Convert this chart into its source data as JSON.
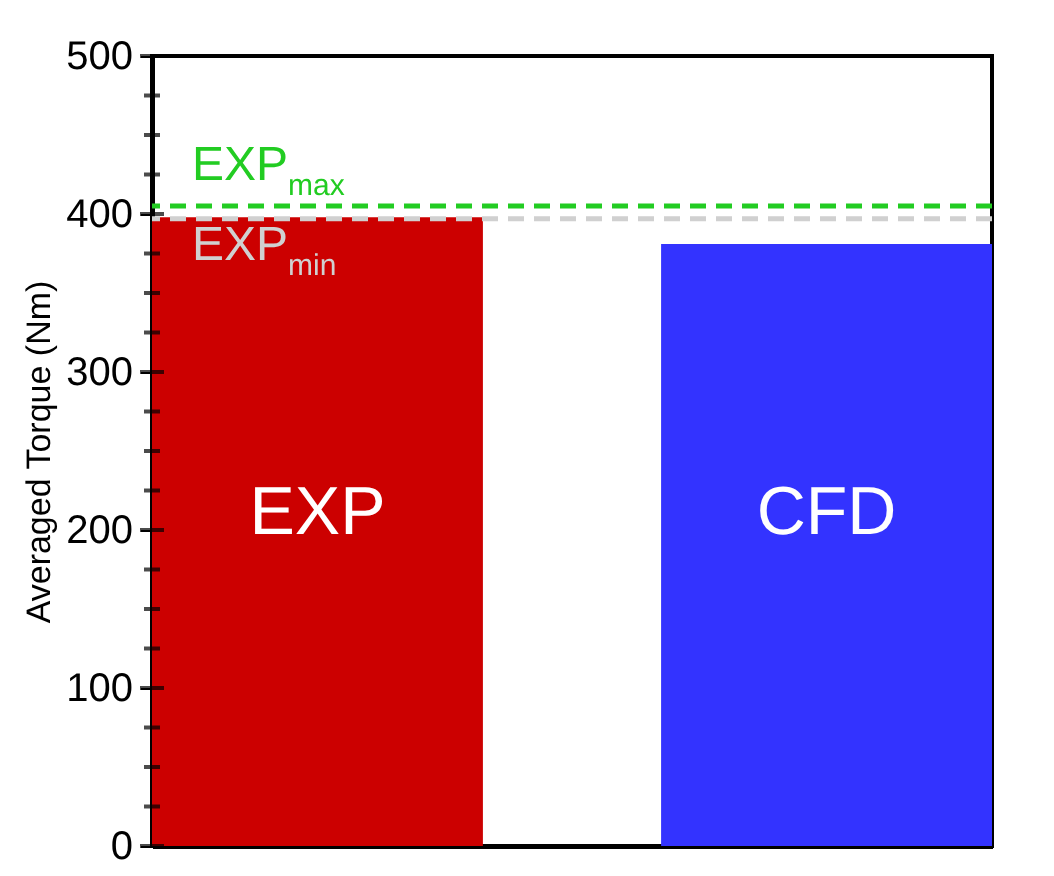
{
  "chart_data": {
    "type": "bar",
    "ylabel": "Averaged Torque (Nm)",
    "categories": [
      "EXP",
      "CFD"
    ],
    "values": [
      398,
      381
    ],
    "colors": [
      "#cc0000",
      "#3333ff"
    ],
    "ylim": [
      0,
      500
    ],
    "yticks": [
      0,
      {
        "value": 25,
        "label": null
      },
      {
        "value": 50,
        "label": null
      },
      {
        "value": 75,
        "label": null
      },
      100,
      {
        "value": 125,
        "label": null
      },
      {
        "value": 150,
        "label": null
      },
      {
        "value": 175,
        "label": null
      },
      200,
      {
        "value": 225,
        "label": null
      },
      {
        "value": 250,
        "label": null
      },
      {
        "value": 275,
        "label": null
      },
      300,
      {
        "value": 325,
        "label": null
      },
      {
        "value": 350,
        "label": null
      },
      {
        "value": 375,
        "label": null
      },
      400,
      {
        "value": 425,
        "label": null
      },
      {
        "value": 450,
        "label": null
      },
      {
        "value": 475,
        "label": null
      },
      500
    ],
    "ref_lines": [
      {
        "axis": "y",
        "value": 405,
        "label": "EXP$_{max}$",
        "color": "#22cc22",
        "line_style": "dashed"
      },
      {
        "axis": "y",
        "value": 397,
        "label": "EXP$_{min}$",
        "color": "#d0d0d0",
        "line_style": "dashed"
      }
    ],
    "grid": false,
    "legend": false
  }
}
